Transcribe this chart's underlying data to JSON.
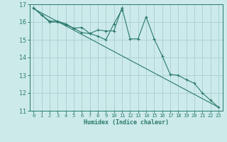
{
  "xlabel": "Humidex (Indice chaleur)",
  "bg_color": "#cceaea",
  "grid_color": "#aacece",
  "line_color": "#2a7a6a",
  "xlim": [
    -0.5,
    23.5
  ],
  "ylim": [
    11,
    17
  ],
  "yticks": [
    11,
    12,
    13,
    14,
    15,
    16,
    17
  ],
  "xticks": [
    0,
    1,
    2,
    3,
    4,
    5,
    6,
    7,
    8,
    9,
    10,
    11,
    12,
    13,
    14,
    15,
    16,
    17,
    18,
    19,
    20,
    21,
    22,
    23
  ],
  "series1_x": [
    0,
    1,
    2,
    3,
    4,
    5,
    6,
    7,
    8,
    9,
    10,
    11,
    12,
    13,
    14,
    15,
    16,
    17,
    18,
    19,
    20,
    21,
    22,
    23
  ],
  "series1_y": [
    16.8,
    16.4,
    16.0,
    16.0,
    15.85,
    15.65,
    15.7,
    15.35,
    15.55,
    15.5,
    15.5,
    16.8,
    15.05,
    15.05,
    16.3,
    15.05,
    14.1,
    13.05,
    13.0,
    12.75,
    12.55,
    12.0,
    11.6,
    11.2
  ],
  "series2_x": [
    0,
    1,
    2,
    3,
    4,
    5,
    6,
    7,
    8,
    9,
    10,
    11
  ],
  "series2_y": [
    16.8,
    16.4,
    16.05,
    16.05,
    15.9,
    15.65,
    15.4,
    15.35,
    15.2,
    15.0,
    15.9,
    16.7
  ],
  "series3_x": [
    0,
    23
  ],
  "series3_y": [
    16.75,
    11.2
  ]
}
